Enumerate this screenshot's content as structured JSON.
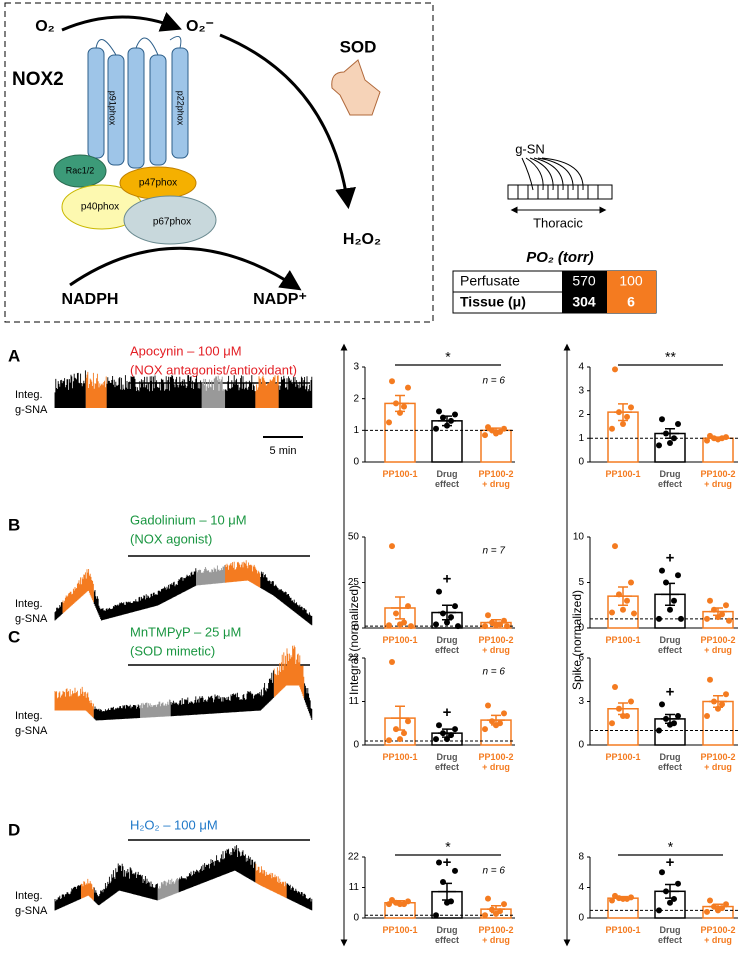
{
  "diagram": {
    "o2": "O₂",
    "superoxide": "O₂⁻",
    "nox2": "NOX2",
    "sod": "SOD",
    "h2o2": "H₂O₂",
    "nadph": "NADPH",
    "nadp": "NADP⁺",
    "subunits": [
      "p91phox",
      "p22phox",
      "Rac1/2",
      "p47phox",
      "p40phox",
      "p67phox"
    ]
  },
  "recording": {
    "nerve": "g-SN",
    "region": "Thoracic",
    "po2_title": "PO₂ (torr)",
    "rows": [
      {
        "label": "Perfusate",
        "values": [
          570,
          100
        ]
      },
      {
        "label": "Tissue (μ)",
        "values": [
          304,
          6
        ]
      }
    ]
  },
  "panels": [
    {
      "letter": "A",
      "drug": "Apocynin – 100 μM",
      "role": "(NOX antagonist/antioxidant)",
      "drug_color": "#e31e24",
      "trace_label": [
        "Integ.",
        "g-SNA"
      ]
    },
    {
      "letter": "B",
      "drug": "Gadolinium – 10 μM",
      "role": "(NOX agonist)",
      "drug_color": "#1a9641",
      "trace_label": [
        "Integ.",
        "g-SNA"
      ]
    },
    {
      "letter": "C",
      "drug": "MnTMPyP – 25 μM",
      "role": "(SOD mimetic)",
      "drug_color": "#1a9641",
      "trace_label": [
        "Integ.",
        "g-SNA"
      ]
    },
    {
      "letter": "D",
      "drug": "H₂O₂ – 100 μM",
      "drug_color": "#1f78c8",
      "trace_label": [
        "Integ.",
        "g-SNA"
      ]
    }
  ],
  "scale_bar": "5 min",
  "y_axis_labels": [
    "Integral (normalized)",
    "Spike (normalized)"
  ],
  "chart_data": [
    {
      "type": "bar",
      "categories": [
        "PP100-1",
        "Drug effect",
        "PP100-2 + drug"
      ],
      "colors": [
        "#f47b20",
        "#000000",
        "#f47b20"
      ],
      "values": [
        1.85,
        1.3,
        1.0
      ],
      "errors": [
        0.25,
        0.15,
        0.07
      ],
      "points": [
        [
          2.55,
          2.35,
          1.85,
          1.75,
          1.55,
          1.25
        ],
        [
          1.6,
          1.5,
          1.4,
          1.3,
          1.15,
          1.05
        ],
        [
          1.1,
          1.05,
          1.0,
          0.95,
          0.9,
          0.85
        ]
      ],
      "ylim": [
        0,
        3
      ],
      "yticks": [
        0,
        1,
        2,
        3
      ],
      "reference": 1,
      "significance": "*",
      "note": "n = 6"
    },
    {
      "type": "bar",
      "categories": [
        "PP100-1",
        "Drug effect",
        "PP100-2 + drug"
      ],
      "colors": [
        "#f47b20",
        "#000000",
        "#f47b20"
      ],
      "values": [
        2.1,
        1.2,
        1.0
      ],
      "errors": [
        0.35,
        0.2,
        0.05
      ],
      "points": [
        [
          3.9,
          2.3,
          2.1,
          1.9,
          1.6,
          1.4
        ],
        [
          1.8,
          1.6,
          1.2,
          1.0,
          0.8,
          0.7
        ],
        [
          1.1,
          1.05,
          1.0,
          1.0,
          0.95,
          0.9
        ]
      ],
      "ylim": [
        0,
        4
      ],
      "yticks": [
        0,
        1,
        2,
        3,
        4
      ],
      "reference": 1,
      "significance": "**"
    },
    {
      "type": "bar",
      "categories": [
        "PP100-1",
        "Drug effect",
        "PP100-2 + drug"
      ],
      "colors": [
        "#f47b20",
        "#000000",
        "#f47b20"
      ],
      "values": [
        11,
        8.5,
        3
      ],
      "errors": [
        6,
        4,
        1.5
      ],
      "points": [
        [
          45,
          12,
          8,
          3,
          2,
          1.5,
          1
        ],
        [
          20,
          12,
          8,
          6,
          3,
          2,
          1
        ],
        [
          7,
          4,
          3,
          2,
          1.5,
          1,
          1
        ]
      ],
      "ylim": [
        0,
        50
      ],
      "yticks": [
        0,
        25,
        50
      ],
      "reference": 1,
      "marker": "+",
      "note": "n = 7"
    },
    {
      "type": "bar",
      "categories": [
        "PP100-1",
        "Drug effect",
        "PP100-2 + drug"
      ],
      "colors": [
        "#f47b20",
        "#000000",
        "#f47b20"
      ],
      "values": [
        3.5,
        3.7,
        1.8
      ],
      "errors": [
        1,
        1.2,
        0.4
      ],
      "points": [
        [
          9,
          5,
          3.7,
          3,
          2,
          1.7,
          1.6
        ],
        [
          6.3,
          5.8,
          5,
          3,
          2,
          1,
          1
        ],
        [
          3,
          2.5,
          2,
          1.5,
          1.2,
          1,
          0.8
        ]
      ],
      "ylim": [
        0,
        10
      ],
      "yticks": [
        0,
        5,
        10
      ],
      "reference": 1,
      "marker": "+"
    },
    {
      "type": "bar",
      "categories": [
        "PP100-1",
        "Drug effect",
        "PP100-2 + drug"
      ],
      "colors": [
        "#f47b20",
        "#000000",
        "#f47b20"
      ],
      "values": [
        6.8,
        3,
        6.3
      ],
      "errors": [
        3,
        1,
        1.2
      ],
      "points": [
        [
          21,
          6,
          4,
          3,
          1.5,
          1.2
        ],
        [
          5,
          4,
          3,
          2.5,
          1.5,
          1.5
        ],
        [
          10,
          8,
          6,
          5.5,
          5,
          4
        ]
      ],
      "ylim": [
        0,
        22
      ],
      "yticks": [
        0,
        11,
        22
      ],
      "reference": 1,
      "marker": "+",
      "note": "n = 6"
    },
    {
      "type": "bar",
      "categories": [
        "PP100-1",
        "Drug effect",
        "PP100-2 + drug"
      ],
      "colors": [
        "#f47b20",
        "#000000",
        "#f47b20"
      ],
      "values": [
        2.5,
        1.8,
        3.0
      ],
      "errors": [
        0.4,
        0.3,
        0.4
      ],
      "points": [
        [
          4,
          3,
          2.5,
          2,
          2,
          1.5
        ],
        [
          2.8,
          2,
          1.8,
          1.5,
          1.4,
          1
        ],
        [
          4.5,
          3.5,
          3,
          2.8,
          2.5,
          2
        ]
      ],
      "ylim": [
        0,
        6
      ],
      "yticks": [
        0,
        3,
        6
      ],
      "reference": 1,
      "marker": "+"
    },
    {
      "type": "bar",
      "categories": [
        "PP100-1",
        "Drug effect",
        "PP100-2 + drug"
      ],
      "colors": [
        "#f47b20",
        "#000000",
        "#f47b20"
      ],
      "values": [
        5.5,
        9.5,
        3.2
      ],
      "errors": [
        0.7,
        3,
        1.2
      ],
      "points": [
        [
          6.5,
          6,
          5.5,
          5,
          5,
          5
        ],
        [
          20,
          17,
          13,
          6,
          5.5,
          1
        ],
        [
          7,
          5,
          3,
          2.5,
          1.5,
          1
        ]
      ],
      "ylim": [
        0,
        22
      ],
      "yticks": [
        0,
        11,
        22
      ],
      "reference": 1,
      "significance": "*",
      "marker": "+",
      "note": "n = 6"
    },
    {
      "type": "bar",
      "categories": [
        "PP100-1",
        "Drug effect",
        "PP100-2 + drug"
      ],
      "colors": [
        "#f47b20",
        "#000000",
        "#f47b20"
      ],
      "values": [
        2.6,
        3.5,
        1.5
      ],
      "errors": [
        0.2,
        0.9,
        0.3
      ],
      "points": [
        [
          2.9,
          2.7,
          2.6,
          2.5,
          2.5,
          2.3
        ],
        [
          6,
          4.5,
          3.5,
          2.5,
          2,
          1
        ],
        [
          2.3,
          1.8,
          1.5,
          1.3,
          1,
          0.8
        ]
      ],
      "ylim": [
        0,
        8
      ],
      "yticks": [
        0,
        4,
        8
      ],
      "reference": 1,
      "significance": "*",
      "marker": "+"
    }
  ]
}
